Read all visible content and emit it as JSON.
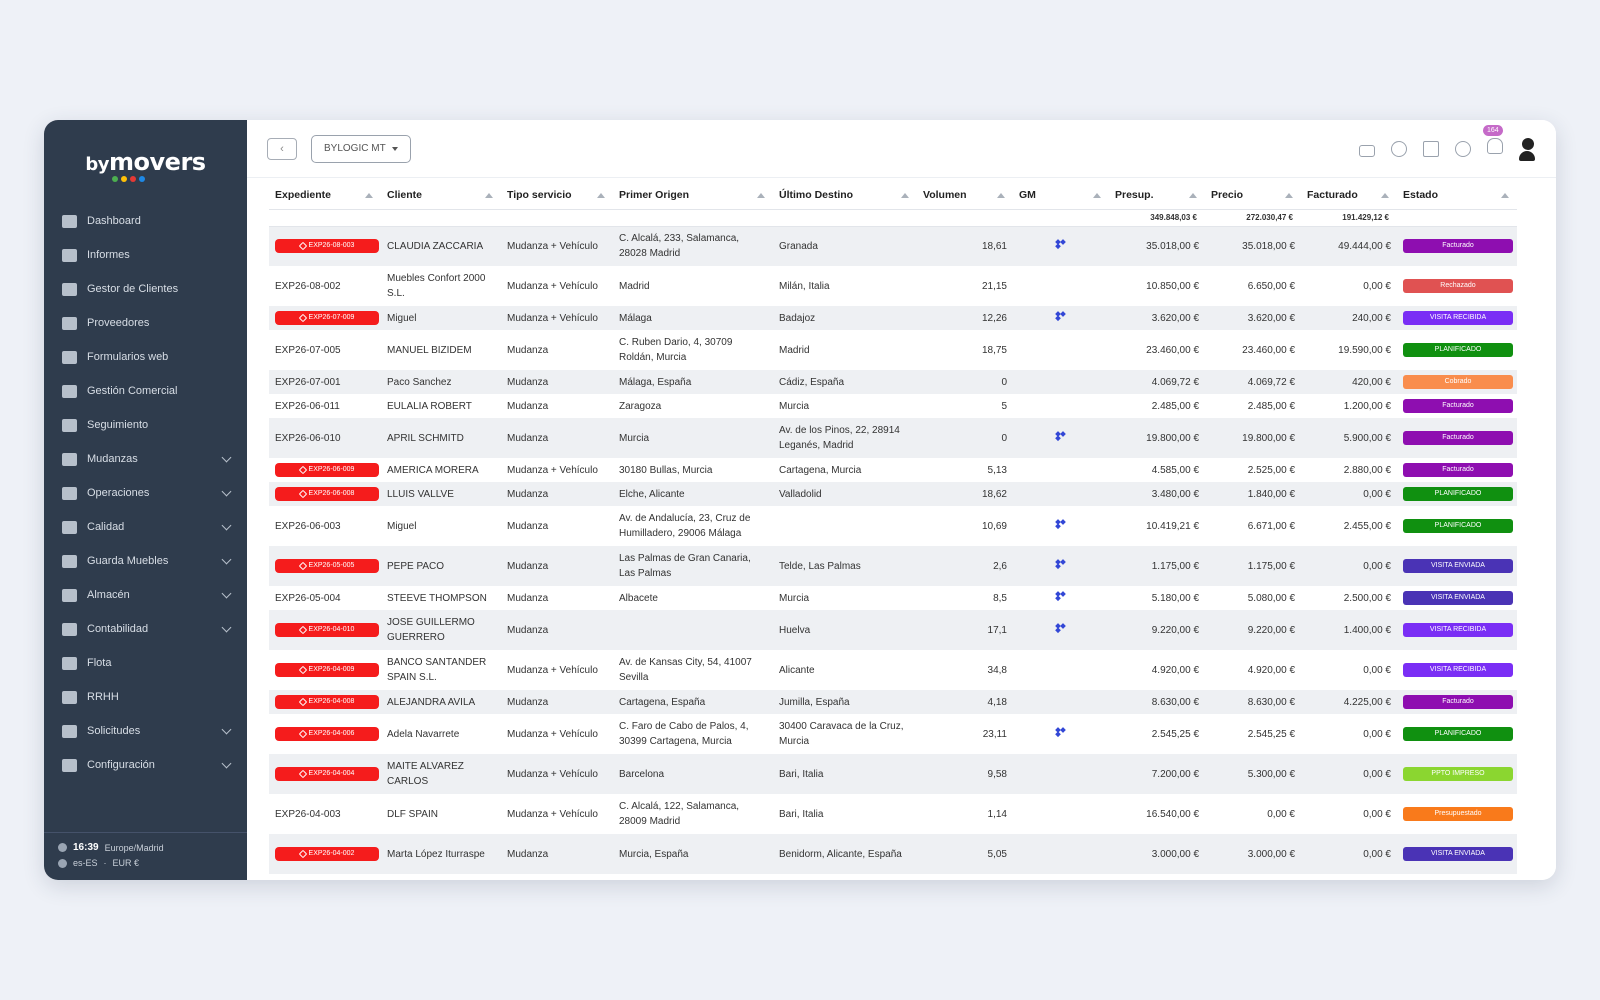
{
  "brand": {
    "by": "by",
    "name": "movers",
    "dot_colors": [
      "#4caf50",
      "#ffc107",
      "#e53935",
      "#1e88e5"
    ]
  },
  "sidebar": {
    "items": [
      {
        "label": "Dashboard",
        "icon": "dashboard-icon",
        "chevron": false
      },
      {
        "label": "Informes",
        "icon": "file-icon",
        "chevron": false
      },
      {
        "label": "Gestor de Clientes",
        "icon": "building-icon",
        "chevron": false
      },
      {
        "label": "Proveedores",
        "icon": "cart-icon",
        "chevron": false
      },
      {
        "label": "Formularios web",
        "icon": "monitor-icon",
        "chevron": false
      },
      {
        "label": "Gestión Comercial",
        "icon": "user-icon",
        "chevron": false
      },
      {
        "label": "Seguimiento",
        "icon": "flag-icon",
        "chevron": false
      },
      {
        "label": "Mudanzas",
        "icon": "truck-icon",
        "chevron": true
      },
      {
        "label": "Operaciones",
        "icon": "calendar-icon",
        "chevron": true
      },
      {
        "label": "Calidad",
        "icon": "half-circle-icon",
        "chevron": true
      },
      {
        "label": "Guarda Muebles",
        "icon": "archive-icon",
        "chevron": true
      },
      {
        "label": "Almacén",
        "icon": "boxes-icon",
        "chevron": true
      },
      {
        "label": "Contabilidad",
        "icon": "bank-icon",
        "chevron": true
      },
      {
        "label": "Flota",
        "icon": "car-icon",
        "chevron": false
      },
      {
        "label": "RRHH",
        "icon": "person-icon",
        "chevron": false
      },
      {
        "label": "Solicitudes",
        "icon": "list-icon",
        "chevron": true
      },
      {
        "label": "Configuración",
        "icon": "gears-icon",
        "chevron": true
      }
    ],
    "footer": {
      "time": "16:39",
      "timezone": "Europe/Madrid",
      "locale": "es-ES",
      "currency": "EUR €"
    }
  },
  "topbar": {
    "company": "BYLOGIC MT",
    "notifications": "164"
  },
  "table": {
    "headers": [
      "Expediente",
      "Cliente",
      "Tipo servicio",
      "Primer Origen",
      "Último Destino",
      "Volumen",
      "GM",
      "Presup.",
      "Precio",
      "Facturado",
      "Estado"
    ],
    "totals": {
      "presup": "349.848,03 €",
      "precio": "272.030,47 €",
      "facturado": "191.429,12 €"
    },
    "rows": [
      {
        "exp": "EXP26-08-003",
        "pill": true,
        "cliente": "CLAUDIA ZACCARIA",
        "tipo": "Mudanza + Vehículo",
        "origen": "C. Alcalá, 233, Salamanca, 28028 Madrid",
        "destino": "Granada",
        "vol": "18,61",
        "gm": true,
        "presup": "35.018,00 €",
        "precio": "35.018,00 €",
        "fact": "49.444,00 €",
        "estado": "Facturado",
        "color": "#8e0eb0"
      },
      {
        "exp": "EXP26-08-002",
        "pill": false,
        "cliente": "Muebles Confort 2000 S.L.",
        "tipo": "Mudanza + Vehículo",
        "origen": "Madrid",
        "destino": "Milán, Italia",
        "vol": "21,15",
        "gm": false,
        "presup": "10.850,00 €",
        "precio": "6.650,00 €",
        "fact": "0,00 €",
        "estado": "Rechazado",
        "color": "#e05252"
      },
      {
        "exp": "EXP26-07-009",
        "pill": true,
        "cliente": "Miguel",
        "tipo": "Mudanza + Vehículo",
        "origen": "Málaga",
        "destino": "Badajoz",
        "vol": "12,26",
        "gm": true,
        "presup": "3.620,00 €",
        "precio": "3.620,00 €",
        "fact": "240,00 €",
        "estado": "VISITA RECIBIDA",
        "color": "#7a2ef5"
      },
      {
        "exp": "EXP26-07-005",
        "pill": false,
        "cliente": "MANUEL BIZIDEM",
        "tipo": "Mudanza",
        "origen": "C. Ruben Dario, 4, 30709 Roldán, Murcia",
        "destino": "Madrid",
        "vol": "18,75",
        "gm": false,
        "presup": "23.460,00 €",
        "precio": "23.460,00 €",
        "fact": "19.590,00 €",
        "estado": "PLANIFICADO",
        "color": "#109010"
      },
      {
        "exp": "EXP26-07-001",
        "pill": false,
        "cliente": "Paco Sanchez",
        "tipo": "Mudanza",
        "origen": "Málaga, España",
        "destino": "Cádiz, España",
        "vol": "0",
        "gm": false,
        "presup": "4.069,72 €",
        "precio": "4.069,72 €",
        "fact": "420,00 €",
        "estado": "Cobrado",
        "color": "#f98d4d"
      },
      {
        "exp": "EXP26-06-011",
        "pill": false,
        "cliente": "EULALIA ROBERT",
        "tipo": "Mudanza",
        "origen": "Zaragoza",
        "destino": "Murcia",
        "vol": "5",
        "gm": false,
        "presup": "2.485,00 €",
        "precio": "2.485,00 €",
        "fact": "1.200,00 €",
        "estado": "Facturado",
        "color": "#8e0eb0"
      },
      {
        "exp": "EXP26-06-010",
        "pill": false,
        "cliente": "APRIL SCHMITD",
        "tipo": "Mudanza",
        "origen": "Murcia",
        "destino": "Av. de los Pinos, 22, 28914 Leganés, Madrid",
        "vol": "0",
        "gm": true,
        "presup": "19.800,00 €",
        "precio": "19.800,00 €",
        "fact": "5.900,00 €",
        "estado": "Facturado",
        "color": "#8e0eb0"
      },
      {
        "exp": "EXP26-06-009",
        "pill": true,
        "cliente": "AMERICA MORERA",
        "tipo": "Mudanza + Vehículo",
        "origen": "30180 Bullas, Murcia",
        "destino": "Cartagena, Murcia",
        "vol": "5,13",
        "gm": false,
        "presup": "4.585,00 €",
        "precio": "2.525,00 €",
        "fact": "2.880,00 €",
        "estado": "Facturado",
        "color": "#8e0eb0"
      },
      {
        "exp": "EXP26-06-008",
        "pill": true,
        "cliente": "LLUIS VALLVE",
        "tipo": "Mudanza",
        "origen": "Elche, Alicante",
        "destino": "Valladolid",
        "vol": "18,62",
        "gm": false,
        "presup": "3.480,00 €",
        "precio": "1.840,00 €",
        "fact": "0,00 €",
        "estado": "PLANIFICADO",
        "color": "#109010"
      },
      {
        "exp": "EXP26-06-003",
        "pill": false,
        "cliente": "Miguel",
        "tipo": "Mudanza",
        "origen": "Av. de Andalucía, 23, Cruz de Humilladero, 29006 Málaga",
        "destino": "",
        "vol": "10,69",
        "gm": true,
        "presup": "10.419,21 €",
        "precio": "6.671,00 €",
        "fact": "2.455,00 €",
        "estado": "PLANIFICADO",
        "color": "#109010"
      },
      {
        "exp": "EXP26-05-005",
        "pill": true,
        "cliente": "PEPE PACO",
        "tipo": "Mudanza",
        "origen": "Las Palmas de Gran Canaria, Las Palmas",
        "destino": "Telde, Las Palmas",
        "vol": "2,6",
        "gm": true,
        "presup": "1.175,00 €",
        "precio": "1.175,00 €",
        "fact": "0,00 €",
        "estado": "VISITA ENVIADA",
        "color": "#4a33b5"
      },
      {
        "exp": "EXP26-05-004",
        "pill": false,
        "cliente": "STEEVE THOMPSON",
        "tipo": "Mudanza",
        "origen": "Albacete",
        "destino": "Murcia",
        "vol": "8,5",
        "gm": true,
        "presup": "5.180,00 €",
        "precio": "5.080,00 €",
        "fact": "2.500,00 €",
        "estado": "VISITA ENVIADA",
        "color": "#4a33b5"
      },
      {
        "exp": "EXP26-04-010",
        "pill": true,
        "cliente": "JOSE GUILLERMO GUERRERO",
        "tipo": "Mudanza",
        "origen": "",
        "destino": "Huelva",
        "vol": "17,1",
        "gm": true,
        "presup": "9.220,00 €",
        "precio": "9.220,00 €",
        "fact": "1.400,00 €",
        "estado": "VISITA RECIBIDA",
        "color": "#7a2ef5"
      },
      {
        "exp": "EXP26-04-009",
        "pill": true,
        "cliente": "BANCO SANTANDER SPAIN S.L.",
        "tipo": "Mudanza + Vehículo",
        "origen": "Av. de Kansas City, 54, 41007 Sevilla",
        "destino": "Alicante",
        "vol": "34,8",
        "gm": false,
        "presup": "4.920,00 €",
        "precio": "4.920,00 €",
        "fact": "0,00 €",
        "estado": "VISITA RECIBIDA",
        "color": "#7a2ef5"
      },
      {
        "exp": "EXP26-04-008",
        "pill": true,
        "cliente": "ALEJANDRA AVILA",
        "tipo": "Mudanza",
        "origen": "Cartagena, España",
        "destino": "Jumilla, España",
        "vol": "4,18",
        "gm": false,
        "presup": "8.630,00 €",
        "precio": "8.630,00 €",
        "fact": "4.225,00 €",
        "estado": "Facturado",
        "color": "#8e0eb0"
      },
      {
        "exp": "EXP26-04-006",
        "pill": true,
        "cliente": "Adela Navarrete",
        "tipo": "Mudanza + Vehículo",
        "origen": "C. Faro de Cabo de Palos, 4, 30399 Cartagena, Murcia",
        "destino": "30400 Caravaca de la Cruz, Murcia",
        "vol": "23,11",
        "gm": true,
        "presup": "2.545,25 €",
        "precio": "2.545,25 €",
        "fact": "0,00 €",
        "estado": "PLANIFICADO",
        "color": "#109010"
      },
      {
        "exp": "EXP26-04-004",
        "pill": true,
        "cliente": "MAITE ALVAREZ CARLOS",
        "tipo": "Mudanza + Vehículo",
        "origen": "Barcelona",
        "destino": "Bari, Italia",
        "vol": "9,58",
        "gm": false,
        "presup": "7.200,00 €",
        "precio": "5.300,00 €",
        "fact": "0,00 €",
        "estado": "PPTO IMPRESO",
        "color": "#8bd630"
      },
      {
        "exp": "EXP26-04-003",
        "pill": false,
        "cliente": "DLF SPAIN",
        "tipo": "Mudanza + Vehículo",
        "origen": "C. Alcalá, 122, Salamanca, 28009 Madrid",
        "destino": "Bari, Italia",
        "vol": "1,14",
        "gm": false,
        "presup": "16.540,00 €",
        "precio": "0,00 €",
        "fact": "0,00 €",
        "estado": "Presupuestado",
        "color": "#f97a1b"
      },
      {
        "exp": "EXP26-04-002",
        "pill": true,
        "cliente": "Marta López Iturraspe",
        "tipo": "Mudanza",
        "origen": "Murcia, España",
        "destino": "Benidorm, Alicante, España",
        "vol": "5,05",
        "gm": false,
        "presup": "3.000,00 €",
        "precio": "3.000,00 €",
        "fact": "0,00 €",
        "estado": "VISITA ENVIADA",
        "color": "#4a33b5"
      }
    ]
  }
}
